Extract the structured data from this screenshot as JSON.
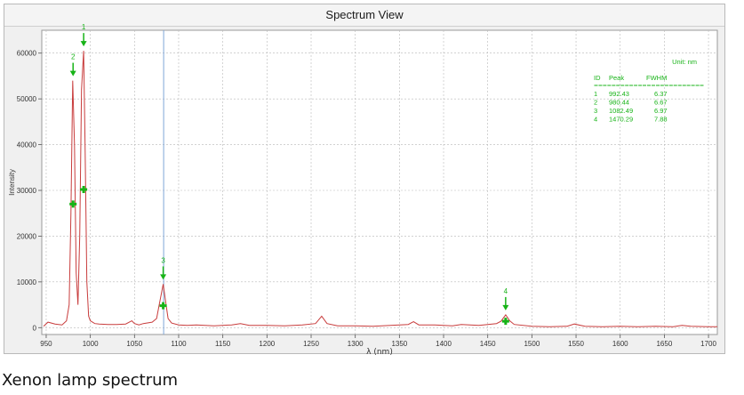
{
  "window": {
    "title": "Spectrum View"
  },
  "caption": "Xenon lamp spectrum",
  "chart_data": {
    "type": "line",
    "xlabel": "λ (nm)",
    "ylabel": "Intensity",
    "xlim": [
      945,
      1710
    ],
    "ylim": [
      -1500,
      65000
    ],
    "x_ticks": [
      950,
      1000,
      1050,
      1100,
      1150,
      1200,
      1250,
      1300,
      1350,
      1400,
      1450,
      1500,
      1550,
      1600,
      1650,
      1700
    ],
    "y_ticks": [
      0,
      10000,
      20000,
      30000,
      40000,
      50000,
      60000
    ],
    "grid": true,
    "cursor_x": 1083,
    "colors": {
      "line": "#c83c3c",
      "marker": "#17b317",
      "cursor": "#7fa6d8",
      "grid": "#b8b8b8"
    },
    "series": [
      {
        "x": [
          947,
          952,
          960,
          968,
          973,
          976,
          978,
          980,
          982,
          984,
          986,
          988,
          990,
          992.43,
          994,
          996,
          998,
          1000,
          1005,
          1010,
          1020,
          1030,
          1040,
          1047,
          1050,
          1055,
          1060,
          1070,
          1075,
          1078,
          1080,
          1082.49,
          1085,
          1088,
          1092,
          1100,
          1110,
          1120,
          1140,
          1160,
          1170,
          1180,
          1200,
          1220,
          1240,
          1255,
          1262,
          1268,
          1280,
          1300,
          1320,
          1340,
          1360,
          1366,
          1372,
          1390,
          1410,
          1420,
          1440,
          1460,
          1465,
          1470.29,
          1475,
          1480,
          1500,
          1520,
          1540,
          1548,
          1560,
          1580,
          1600,
          1620,
          1640,
          1660,
          1670,
          1680,
          1700,
          1710
        ],
        "values": [
          300,
          1200,
          800,
          600,
          1500,
          5000,
          25000,
          54000,
          40000,
          12000,
          5000,
          20000,
          52000,
          60500,
          40000,
          10000,
          2500,
          1500,
          900,
          800,
          700,
          700,
          800,
          1500,
          900,
          600,
          900,
          1200,
          2000,
          5000,
          7000,
          9500,
          6000,
          2000,
          1000,
          600,
          500,
          600,
          400,
          600,
          900,
          500,
          500,
          400,
          600,
          900,
          2500,
          900,
          400,
          400,
          300,
          500,
          700,
          1300,
          600,
          600,
          400,
          700,
          500,
          900,
          1400,
          2800,
          1500,
          700,
          300,
          200,
          300,
          800,
          300,
          200,
          300,
          200,
          300,
          200,
          500,
          300,
          200,
          200
        ]
      }
    ],
    "peaks": [
      {
        "id": "1",
        "peak": "992.43",
        "fwhm": "6.37",
        "x": 992.43,
        "y": 60500,
        "half": 30200
      },
      {
        "id": "2",
        "peak": "980.44",
        "fwhm": "6.67",
        "x": 980.44,
        "y": 54000,
        "half": 27000
      },
      {
        "id": "3",
        "peak": "1082.49",
        "fwhm": "6.97",
        "x": 1082.49,
        "y": 9500,
        "half": 4800
      },
      {
        "id": "4",
        "peak": "1470.29",
        "fwhm": "7.88",
        "x": 1470.29,
        "y": 2800,
        "half": 1400
      }
    ],
    "table": {
      "unit": "Unit: nm",
      "headers": [
        "ID",
        "Peak",
        "FWHM"
      ],
      "separator": "=========================",
      "rows": [
        [
          "1",
          "992.43",
          "6.37"
        ],
        [
          "2",
          "980.44",
          "6.67"
        ],
        [
          "3",
          "1082.49",
          "6.97"
        ],
        [
          "4",
          "1470.29",
          "7.88"
        ]
      ]
    }
  }
}
